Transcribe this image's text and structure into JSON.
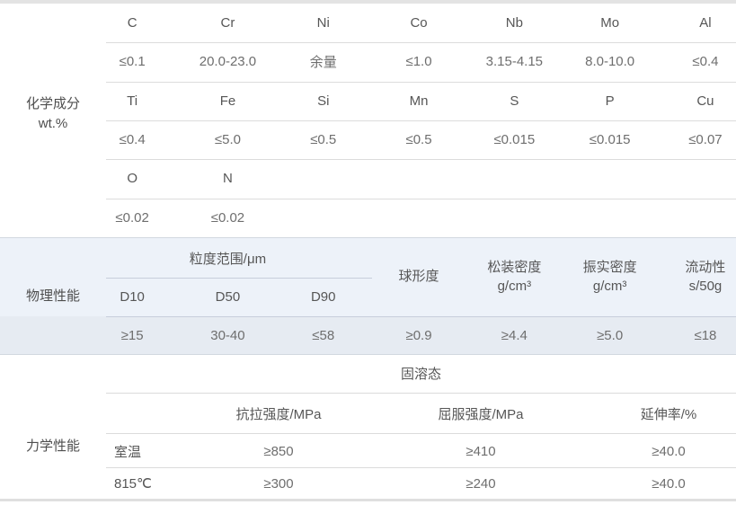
{
  "sections": {
    "chemical": {
      "label_line1": "化学成分",
      "label_line2": "wt.%",
      "rows": [
        [
          "C",
          "Cr",
          "Ni",
          "Co",
          "Nb",
          "Mo",
          "Al"
        ],
        [
          "≤0.1",
          "20.0-23.0",
          "余量",
          "≤1.0",
          "3.15-4.15",
          "8.0-10.0",
          "≤0.4"
        ],
        [
          "Ti",
          "Fe",
          "Si",
          "Mn",
          "S",
          "P",
          "Cu"
        ],
        [
          "≤0.4",
          "≤5.0",
          "≤0.5",
          "≤0.5",
          "≤0.015",
          "≤0.015",
          "≤0.07"
        ],
        [
          "O",
          "N",
          "",
          "",
          "",
          "",
          ""
        ],
        [
          "≤0.02",
          "≤0.02",
          "",
          "",
          "",
          "",
          ""
        ]
      ]
    },
    "physical": {
      "label": "物理性能",
      "size_range_header": "粒度范围/μm",
      "d_headers": [
        "D10",
        "D50",
        "D90"
      ],
      "col_headers": [
        "球形度",
        "松装密度\ng/cm³",
        "振实密度\ng/cm³",
        "流动性\ns/50g"
      ],
      "values": [
        "≥15",
        "30-40",
        "≤58",
        "≥0.9",
        "≥4.4",
        "≥5.0",
        "≤18"
      ]
    },
    "mechanical": {
      "label": "力学性能",
      "state_header": "固溶态",
      "col_headers": [
        "抗拉强度/MPa",
        "屈服强度/MPa",
        "延伸率/%"
      ],
      "rows": [
        {
          "condition": "室温",
          "values": [
            "≥850",
            "≥410",
            "≥40.0"
          ]
        },
        {
          "condition": "815℃",
          "values": [
            "≥300",
            "≥240",
            "≥40.0"
          ]
        }
      ]
    }
  },
  "colors": {
    "physical_section_bg": "#edf2f9",
    "physical_value_row_bg": "#e6ebf2",
    "row_line": "#dcdcdc",
    "text": "#5d5d5d"
  }
}
